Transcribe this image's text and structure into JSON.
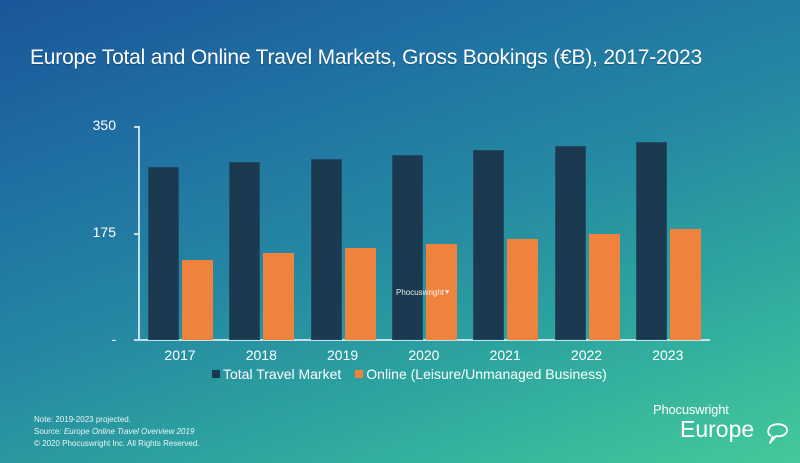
{
  "title": "Europe Total and Online Travel Markets, Gross Bookings (€B), 2017-2023",
  "y_axis": {
    "ticks": [
      {
        "label": "350",
        "value": 350
      },
      {
        "label": "175",
        "value": 175
      },
      {
        "label": "-",
        "value": 0
      }
    ]
  },
  "legend": {
    "total": "Total Travel Market",
    "online": "Online (Leisure/Unmanaged Business)"
  },
  "colors": {
    "total": "#1b3a50",
    "online": "#ef823d",
    "bg_start": "#1a5699",
    "bg_end": "#45c99a"
  },
  "watermark": "Phocuswright",
  "footnotes": {
    "note": "Note: 2019-2023 projected.",
    "source_prefix": "Source:",
    "source_title": "Europe Online Travel Overview 2019",
    "copyright": "© 2020  Phocuswright Inc. All Rights Reserved."
  },
  "brand": {
    "top": "Phocuswright",
    "bottom": "Europe"
  },
  "chart_data": {
    "type": "bar",
    "title": "Europe Total and Online Travel Markets, Gross Bookings (€B), 2017-2023",
    "xlabel": "",
    "ylabel": "",
    "ylim": [
      0,
      350
    ],
    "yticks": [
      0,
      175,
      350
    ],
    "ytick_labels": [
      "-",
      "175",
      "350"
    ],
    "grid": false,
    "legend_position": "bottom",
    "categories": [
      "2017",
      "2018",
      "2019",
      "2020",
      "2021",
      "2022",
      "2023"
    ],
    "series": [
      {
        "name": "Total Travel Market",
        "color": "#1b3a50",
        "values": [
          283,
          291,
          296,
          303,
          310,
          317,
          324
        ]
      },
      {
        "name": "Online (Leisure/Unmanaged Business)",
        "color": "#ef823d",
        "values": [
          131,
          142,
          151,
          157,
          165,
          173,
          182
        ]
      }
    ],
    "annotations": [
      "Note: 2019-2023 projected."
    ]
  }
}
